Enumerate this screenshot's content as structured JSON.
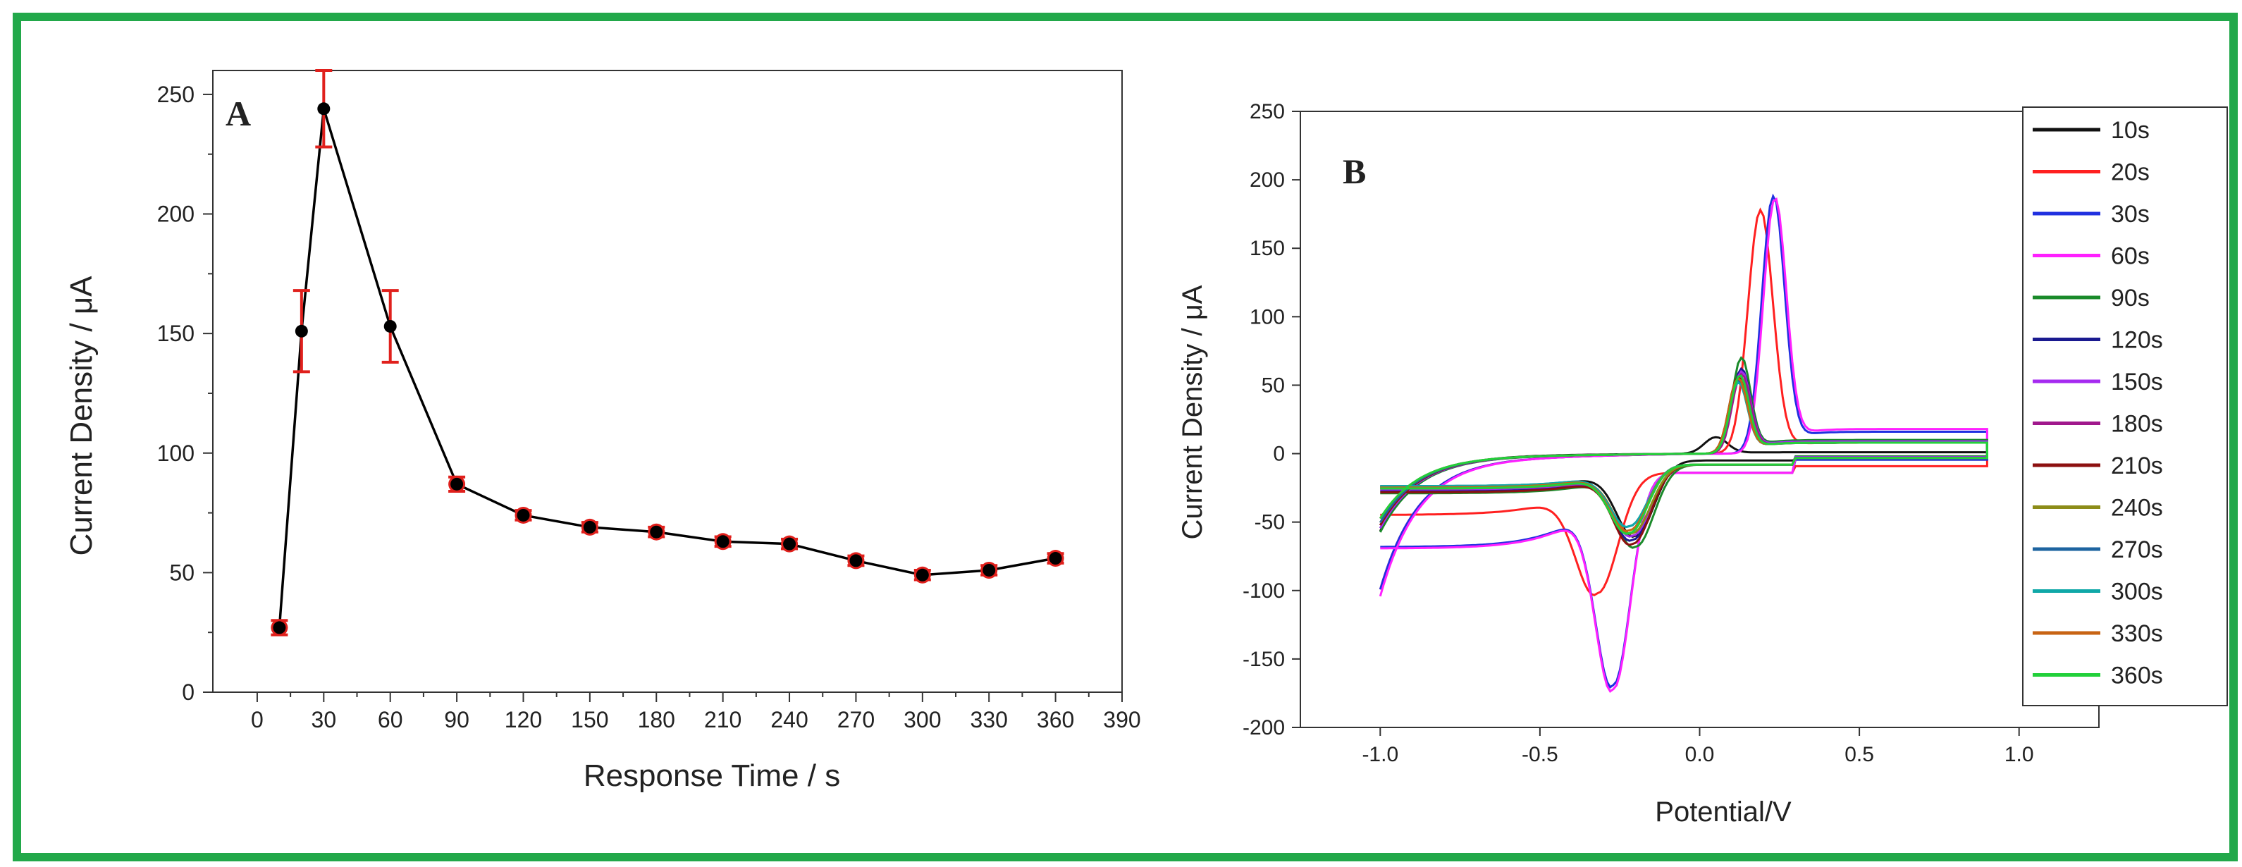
{
  "frame_color": "#22a84a",
  "chart_data": [
    {
      "panel": "A",
      "type": "scatter",
      "panel_label": "A",
      "title": "",
      "xlabel": "Response Time / s",
      "ylabel": "Current Density / μA",
      "xlim": [
        -20,
        390
      ],
      "ylim": [
        0,
        260
      ],
      "xticks": [
        0,
        30,
        60,
        90,
        120,
        150,
        180,
        210,
        240,
        270,
        300,
        330,
        360,
        390
      ],
      "yticks": [
        0,
        50,
        100,
        150,
        200,
        250
      ],
      "x_tick_labels": [
        "0",
        "30",
        "60",
        "90",
        "120",
        "150",
        "180",
        "210",
        "240",
        "270",
        "300",
        "330",
        "360",
        "390"
      ],
      "y_tick_labels": [
        "0",
        "50",
        "100",
        "150",
        "200",
        "250"
      ],
      "line_color": "#000000",
      "marker_color": "#000000",
      "error_color": "#e0201c",
      "points": [
        {
          "x": 10,
          "y": 27,
          "err": 3
        },
        {
          "x": 20,
          "y": 151,
          "err": 17
        },
        {
          "x": 30,
          "y": 244,
          "err": 16
        },
        {
          "x": 60,
          "y": 153,
          "err": 15
        },
        {
          "x": 90,
          "y": 87,
          "err": 3
        },
        {
          "x": 120,
          "y": 74,
          "err": 2
        },
        {
          "x": 150,
          "y": 69,
          "err": 2
        },
        {
          "x": 180,
          "y": 67,
          "err": 2
        },
        {
          "x": 210,
          "y": 63,
          "err": 2
        },
        {
          "x": 240,
          "y": 62,
          "err": 2
        },
        {
          "x": 270,
          "y": 55,
          "err": 2
        },
        {
          "x": 300,
          "y": 49,
          "err": 2
        },
        {
          "x": 330,
          "y": 51,
          "err": 2
        },
        {
          "x": 360,
          "y": 56,
          "err": 2
        }
      ]
    },
    {
      "panel": "B",
      "type": "line",
      "panel_label": "B",
      "title": "",
      "xlabel": "Potential/V",
      "ylabel": "Current Density / μA",
      "xlim": [
        -1.25,
        1.25
      ],
      "ylim": [
        -200,
        250
      ],
      "xticks": [
        -1.0,
        -0.5,
        0.0,
        0.5,
        1.0
      ],
      "yticks": [
        -200,
        -150,
        -100,
        -50,
        0,
        50,
        100,
        150,
        200,
        250
      ],
      "x_tick_labels": [
        "-1.0",
        "-0.5",
        "0.0",
        "0.5",
        "1.0"
      ],
      "y_tick_labels": [
        "-200",
        "-150",
        "-100",
        "-50",
        "0",
        "50",
        "100",
        "150",
        "200",
        "250"
      ],
      "legend_position": "right",
      "series": [
        {
          "name": "10s",
          "color": "#111111",
          "params": {
            "pa": 0.05,
            "ia": 12,
            "wa": 0.05,
            "pc": -0.2,
            "ic": -55,
            "wc": 0.08,
            "plat": 1,
            "start": -55,
            "cap": 5
          }
        },
        {
          "name": "20s",
          "color": "#ff2020",
          "params": {
            "pa": 0.19,
            "ia": 178,
            "wa": 0.055,
            "pc": -0.32,
            "ic": -88,
            "wc": 0.09,
            "plat": 8,
            "start": -95,
            "cap": 14
          }
        },
        {
          "name": "30s",
          "color": "#2030e0",
          "params": {
            "pa": 0.23,
            "ia": 188,
            "wa": 0.05,
            "pc": -0.27,
            "ic": -155,
            "wc": 0.075,
            "plat": 16,
            "start": -95,
            "cap": 14
          }
        },
        {
          "name": "60s",
          "color": "#ff20ff",
          "params": {
            "pa": 0.235,
            "ia": 186,
            "wa": 0.05,
            "pc": -0.27,
            "ic": -158,
            "wc": 0.075,
            "plat": 18,
            "start": -100,
            "cap": 14
          }
        },
        {
          "name": "90s",
          "color": "#1a8a2a",
          "params": {
            "pa": 0.13,
            "ia": 70,
            "wa": 0.04,
            "pc": -0.2,
            "ic": -60,
            "wc": 0.08,
            "plat": 10,
            "start": -55,
            "cap": 8
          }
        },
        {
          "name": "120s",
          "color": "#1a1a90",
          "params": {
            "pa": 0.13,
            "ia": 62,
            "wa": 0.04,
            "pc": -0.21,
            "ic": -55,
            "wc": 0.08,
            "plat": 9,
            "start": -52,
            "cap": 8
          }
        },
        {
          "name": "150s",
          "color": "#a52af0",
          "params": {
            "pa": 0.13,
            "ia": 60,
            "wa": 0.04,
            "pc": -0.21,
            "ic": -52,
            "wc": 0.08,
            "plat": 9,
            "start": -52,
            "cap": 8
          }
        },
        {
          "name": "180s",
          "color": "#a0188c",
          "params": {
            "pa": 0.13,
            "ia": 58,
            "wa": 0.04,
            "pc": -0.21,
            "ic": -50,
            "wc": 0.08,
            "plat": 8,
            "start": -50,
            "cap": 8
          }
        },
        {
          "name": "210s",
          "color": "#8c1010",
          "params": {
            "pa": 0.12,
            "ia": 56,
            "wa": 0.04,
            "pc": -0.21,
            "ic": -58,
            "wc": 0.08,
            "plat": 8,
            "start": -50,
            "cap": 8
          }
        },
        {
          "name": "240s",
          "color": "#8c8c18",
          "params": {
            "pa": 0.12,
            "ia": 55,
            "wa": 0.04,
            "pc": -0.21,
            "ic": -50,
            "wc": 0.08,
            "plat": 8,
            "start": -48,
            "cap": 8
          }
        },
        {
          "name": "270s",
          "color": "#1e64a0",
          "params": {
            "pa": 0.12,
            "ia": 53,
            "wa": 0.04,
            "pc": -0.22,
            "ic": -45,
            "wc": 0.08,
            "plat": 8,
            "start": -48,
            "cap": 8
          }
        },
        {
          "name": "300s",
          "color": "#10a8a8",
          "params": {
            "pa": 0.12,
            "ia": 52,
            "wa": 0.04,
            "pc": -0.22,
            "ic": -45,
            "wc": 0.08,
            "plat": 8,
            "start": -45,
            "cap": 8
          }
        },
        {
          "name": "330s",
          "color": "#c86414",
          "params": {
            "pa": 0.12,
            "ia": 55,
            "wa": 0.04,
            "pc": -0.22,
            "ic": -48,
            "wc": 0.08,
            "plat": 8,
            "start": -45,
            "cap": 8
          }
        },
        {
          "name": "360s",
          "color": "#22d03a",
          "params": {
            "pa": 0.125,
            "ia": 57,
            "wa": 0.04,
            "pc": -0.22,
            "ic": -50,
            "wc": 0.08,
            "plat": 8,
            "start": -45,
            "cap": 8
          }
        }
      ]
    }
  ]
}
